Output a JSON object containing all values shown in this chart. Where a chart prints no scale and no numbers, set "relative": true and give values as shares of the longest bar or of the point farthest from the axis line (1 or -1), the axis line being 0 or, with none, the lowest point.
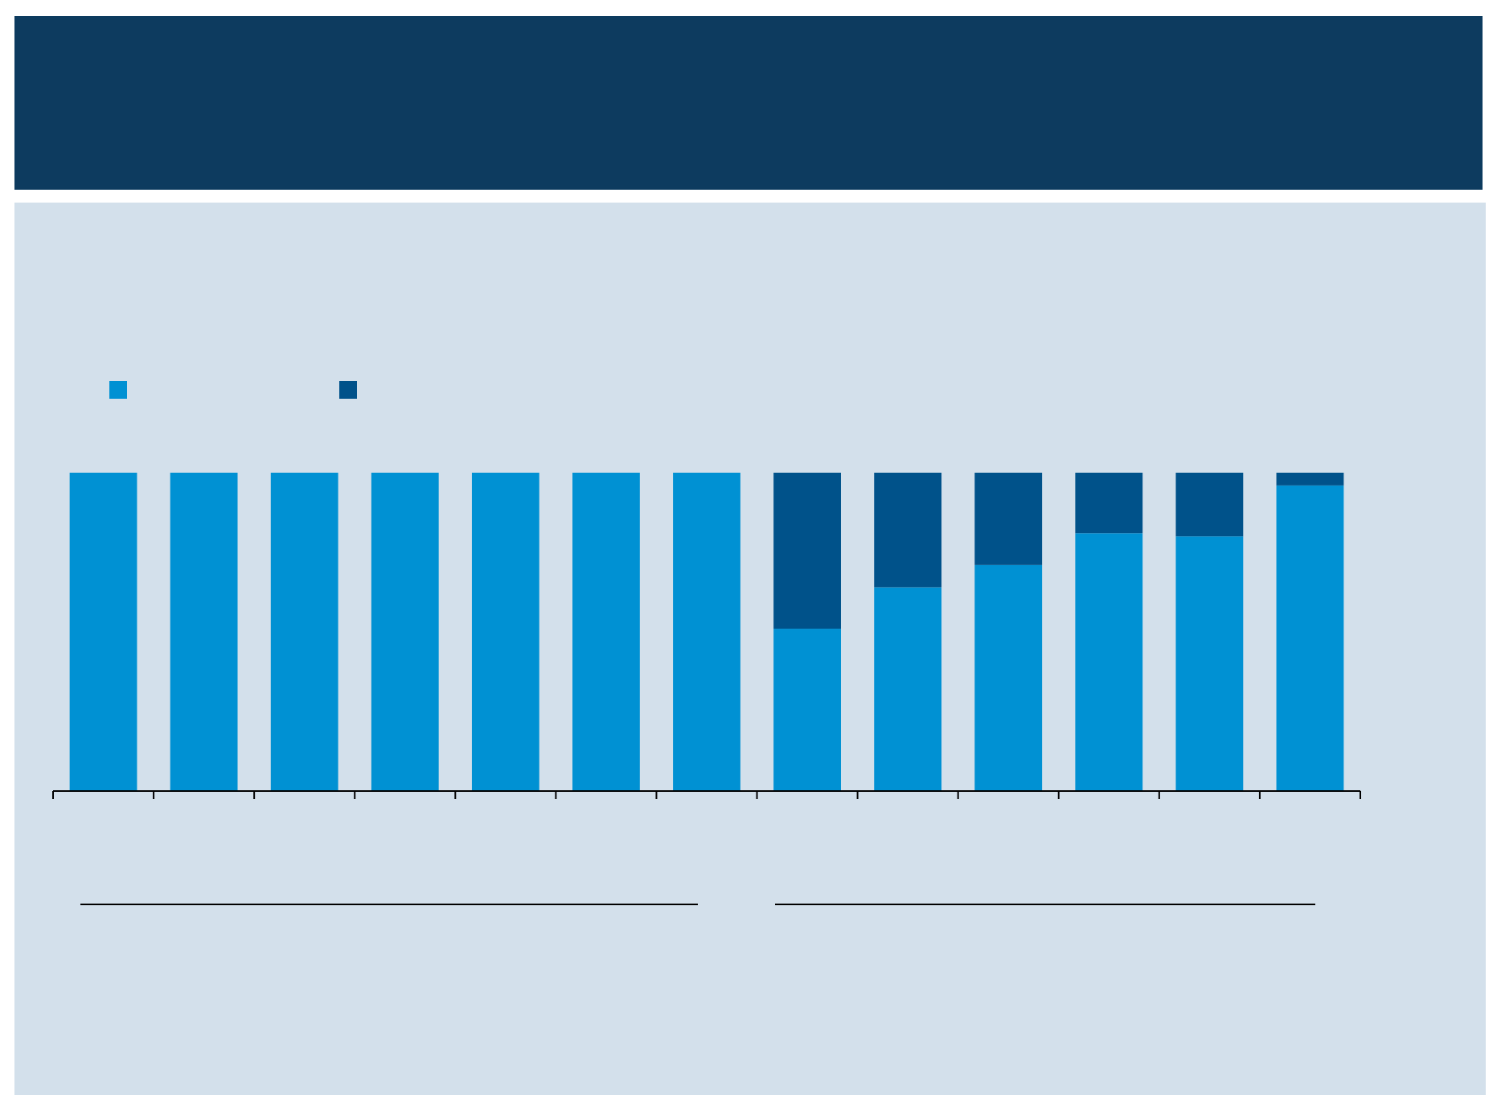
{
  "chart_data": {
    "type": "bar",
    "stacked": true,
    "relative": true,
    "categories": [
      null,
      null,
      null,
      null,
      null,
      null,
      null,
      null,
      null,
      null,
      null,
      null,
      null
    ],
    "series": [
      {
        "color": "#0091d3",
        "values": [
          1,
          1,
          1,
          1,
          1,
          1,
          1,
          0.51,
          0.64,
          0.71,
          0.81,
          0.8,
          0.96
        ]
      },
      {
        "color": "#00528a",
        "values": [
          0,
          0,
          0,
          0,
          0,
          0,
          0,
          0.49,
          0.36,
          0.29,
          0.19,
          0.2,
          0.04
        ]
      }
    ]
  }
}
